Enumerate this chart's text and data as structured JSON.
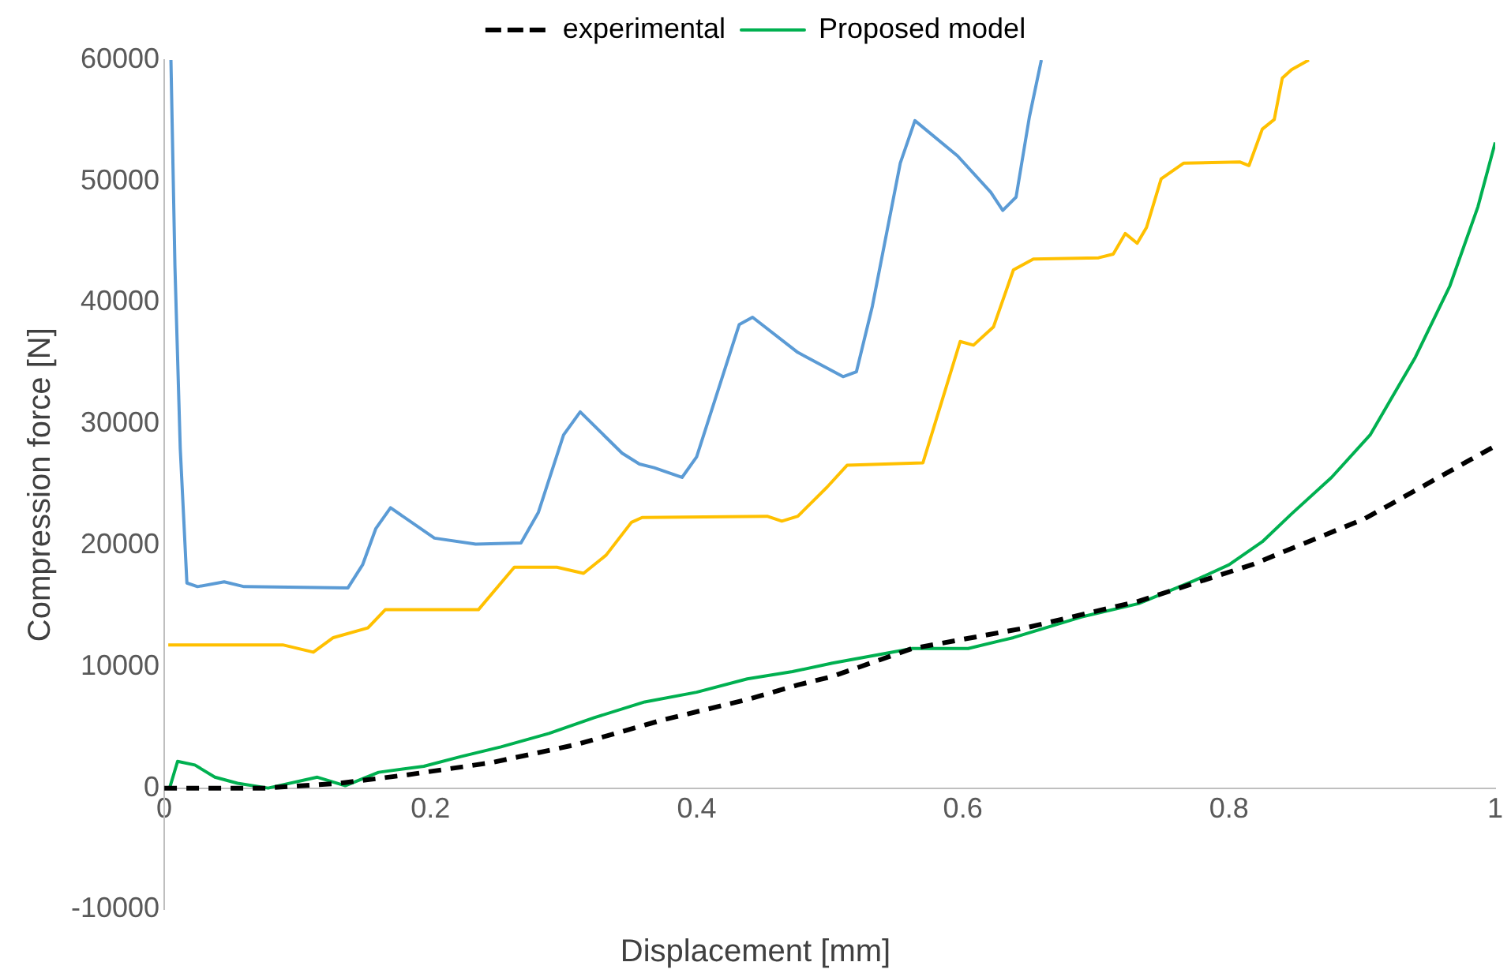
{
  "chart_data": {
    "type": "line",
    "xlabel": "Displacement [mm]",
    "ylabel": "Compression force [N]",
    "xlim": [
      0,
      1
    ],
    "xticks": [
      0,
      0.2,
      0.4,
      0.6,
      0.8,
      1
    ],
    "ylim": [
      -10000,
      60000
    ],
    "yticks": [
      -10000,
      0,
      10000,
      20000,
      30000,
      40000,
      50000,
      60000
    ],
    "grid": false,
    "legend": "top",
    "marker": "none",
    "series": [
      {
        "name": "experimental",
        "color": "#000000",
        "line_style": "dashed",
        "x": [
          0,
          0.076,
          0.132,
          0.183,
          0.246,
          0.31,
          0.374,
          0.438,
          0.476,
          0.502,
          0.562,
          0.647,
          0.732,
          0.817,
          0.902,
          1
        ],
        "values": [
          0,
          0,
          400,
          1100,
          2100,
          3600,
          5600,
          7300,
          8500,
          9200,
          11500,
          13200,
          15400,
          18400,
          22200,
          28200
        ]
      },
      {
        "name": "Proposed model",
        "color": "#00b050",
        "line_style": "solid",
        "x": [
          0.004,
          0.01,
          0.023,
          0.038,
          0.055,
          0.078,
          0.115,
          0.136,
          0.161,
          0.195,
          0.223,
          0.253,
          0.289,
          0.323,
          0.361,
          0.4,
          0.438,
          0.472,
          0.502,
          0.562,
          0.604,
          0.638,
          0.689,
          0.732,
          0.774,
          0.8,
          0.825,
          0.847,
          0.877,
          0.906,
          0.94,
          0.966,
          0.987,
          1
        ],
        "values": [
          0,
          2200,
          1900,
          900,
          400,
          0,
          900,
          200,
          1300,
          1800,
          2600,
          3400,
          4500,
          5800,
          7100,
          7900,
          9000,
          9600,
          10300,
          11500,
          11500,
          12400,
          14100,
          15200,
          17100,
          18400,
          20300,
          22600,
          25600,
          29100,
          35500,
          41400,
          47900,
          53200
        ]
      },
      {
        "color": "#ffc000",
        "line_style": "solid",
        "x": [
          0.003,
          0.089,
          0.112,
          0.127,
          0.153,
          0.166,
          0.236,
          0.263,
          0.295,
          0.315,
          0.332,
          0.351,
          0.359,
          0.453,
          0.464,
          0.476,
          0.498,
          0.513,
          0.57,
          0.598,
          0.608,
          0.623,
          0.638,
          0.653,
          0.702,
          0.713,
          0.722,
          0.731,
          0.738,
          0.749,
          0.766,
          0.808,
          0.815,
          0.825,
          0.834,
          0.84,
          0.847,
          0.86
        ],
        "values": [
          11800,
          11800,
          11200,
          12400,
          13200,
          14700,
          14700,
          18200,
          18200,
          17700,
          19200,
          21900,
          22300,
          22400,
          22000,
          22400,
          24800,
          26600,
          26800,
          36800,
          36500,
          38000,
          42700,
          43600,
          43700,
          44000,
          45700,
          44900,
          46200,
          50200,
          51500,
          51600,
          51300,
          54300,
          55100,
          58500,
          59200,
          60000
        ]
      },
      {
        "color": "#5b9bd5",
        "line_style": "solid",
        "x": [
          0.005,
          0.008,
          0.012,
          0.017,
          0.025,
          0.045,
          0.06,
          0.138,
          0.149,
          0.159,
          0.17,
          0.203,
          0.234,
          0.268,
          0.281,
          0.3,
          0.3125,
          0.344,
          0.357,
          0.368,
          0.389,
          0.4,
          0.432,
          0.442,
          0.476,
          0.51,
          0.52,
          0.532,
          0.553,
          0.564,
          0.596,
          0.621,
          0.63,
          0.64,
          0.65,
          0.659
        ],
        "values": [
          60000,
          43000,
          28000,
          16900,
          16600,
          17000,
          16600,
          16500,
          18400,
          21400,
          23100,
          20600,
          20100,
          20200,
          22700,
          29100,
          31000,
          27600,
          26700,
          26400,
          25600,
          27300,
          38200,
          38800,
          35900,
          33900,
          34300,
          39700,
          51500,
          55000,
          52100,
          49100,
          47600,
          48700,
          55300,
          60000
        ]
      }
    ]
  }
}
